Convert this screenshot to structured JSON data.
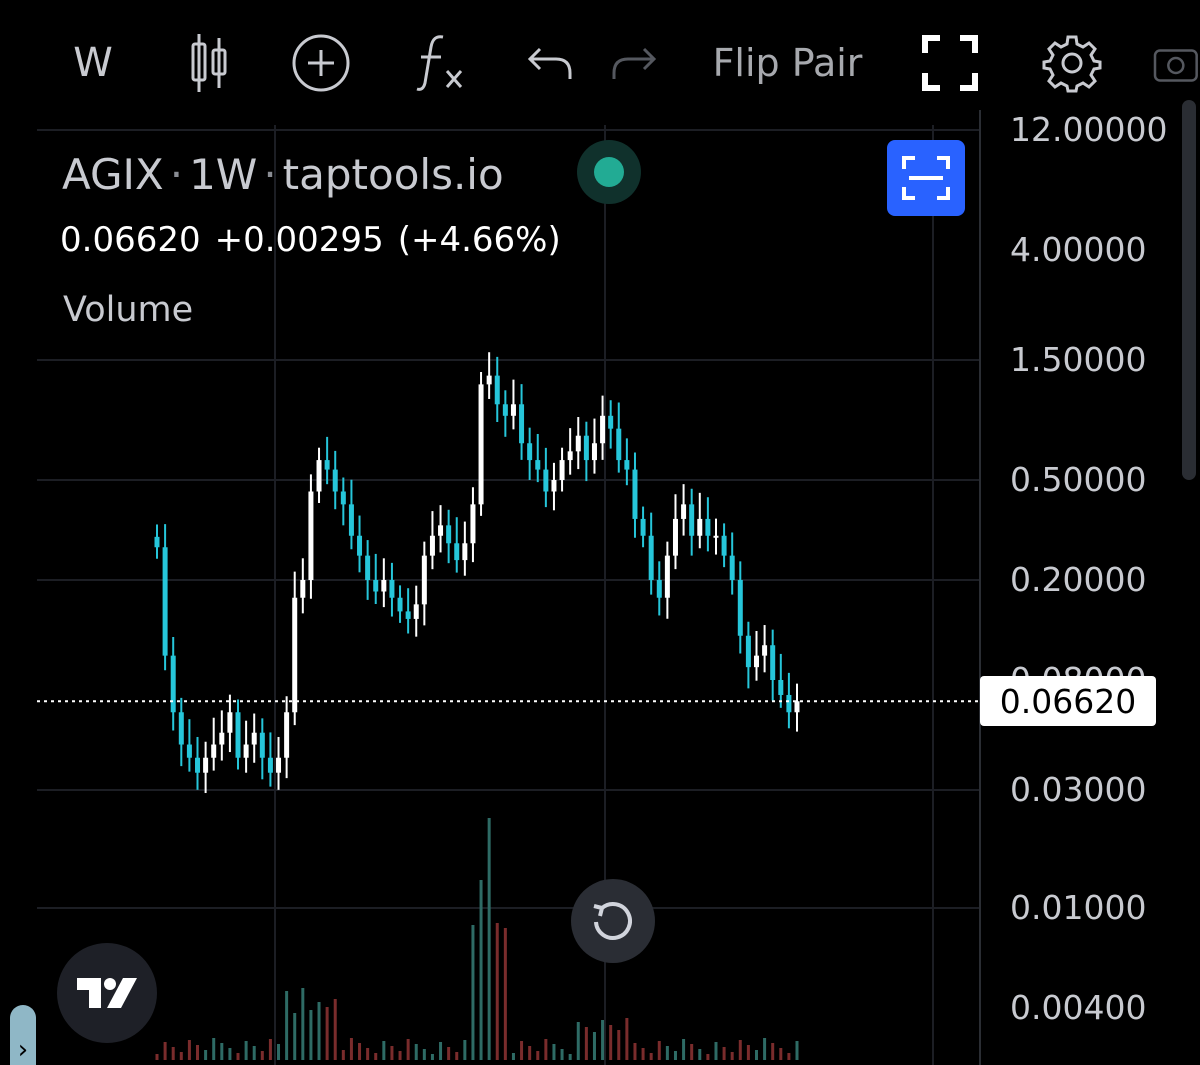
{
  "toolbar": {
    "interval": "W",
    "flip_label": "Flip Pair",
    "icons": [
      "candles-icon",
      "add-indicator-icon",
      "fx-icon",
      "undo-icon",
      "redo-icon",
      "fullscreen-icon",
      "settings-icon",
      "camera-icon"
    ]
  },
  "legend": {
    "symbol": "AGIX",
    "interval": "1W",
    "source": "taptools.io",
    "last": "0.06620",
    "change": "+0.00295",
    "change_pct": "(+4.66%)",
    "volume_label": "Volume",
    "status_color": "#22ab94"
  },
  "price_axis": {
    "labels": [
      "12.00000",
      "4.00000",
      "1.50000",
      "0.50000",
      "0.20000",
      "0.08000",
      "0.03000",
      "0.01000",
      "0.00400"
    ],
    "last_price_tag": "0.06620"
  },
  "colors": {
    "up": "#ffffff",
    "down": "#26c6da",
    "accent": "#2962ff",
    "background": "#000000"
  },
  "chart_data": {
    "type": "candlestick",
    "symbol": "AGIX",
    "interval": "1W",
    "scale": "log",
    "ylim": [
      0.004,
      12
    ],
    "last_price": 0.0662,
    "close_approx": [
      0.27,
      0.1,
      0.06,
      0.045,
      0.04,
      0.035,
      0.04,
      0.045,
      0.05,
      0.06,
      0.04,
      0.045,
      0.05,
      0.04,
      0.035,
      0.04,
      0.06,
      0.17,
      0.2,
      0.45,
      0.6,
      0.55,
      0.45,
      0.4,
      0.3,
      0.25,
      0.2,
      0.18,
      0.2,
      0.17,
      0.15,
      0.14,
      0.16,
      0.25,
      0.3,
      0.33,
      0.28,
      0.24,
      0.28,
      0.4,
      1.2,
      1.3,
      1.0,
      0.9,
      1.0,
      0.7,
      0.6,
      0.55,
      0.45,
      0.5,
      0.6,
      0.65,
      0.75,
      0.6,
      0.7,
      0.9,
      0.8,
      0.6,
      0.55,
      0.35,
      0.3,
      0.2,
      0.17,
      0.25,
      0.35,
      0.4,
      0.3,
      0.35,
      0.3,
      0.3,
      0.25,
      0.2,
      0.12,
      0.09,
      0.1,
      0.11,
      0.08,
      0.07,
      0.06,
      0.0662
    ]
  }
}
